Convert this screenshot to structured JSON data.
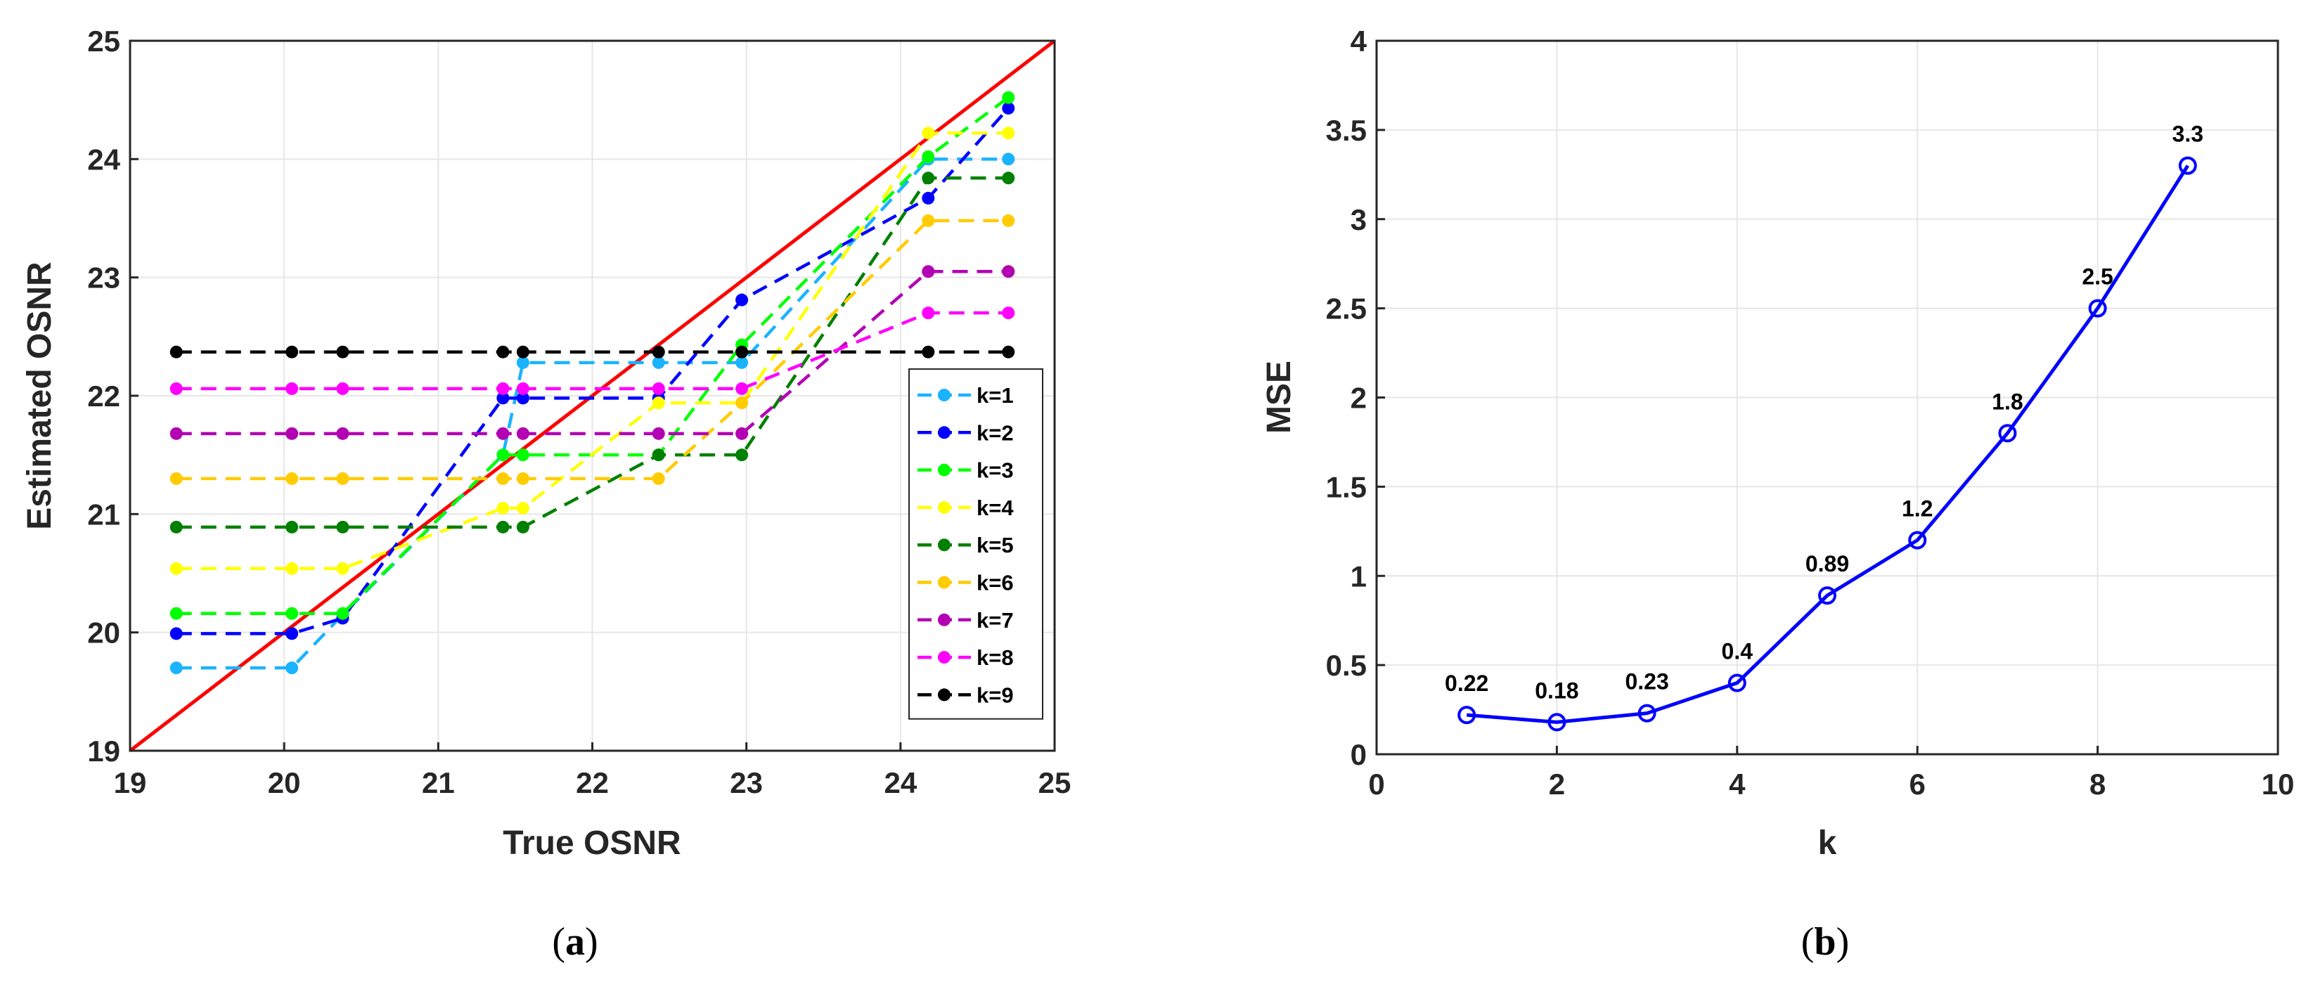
{
  "chart_data": [
    {
      "type": "line",
      "xlabel": "True OSNR",
      "ylabel": "Estimated OSNR",
      "xlim": [
        19,
        25
      ],
      "ylim": [
        19,
        25
      ],
      "xticks": [
        "19",
        "20",
        "21",
        "22",
        "23",
        "24",
        "25"
      ],
      "yticks": [
        "19",
        "20",
        "21",
        "22",
        "23",
        "24",
        "25"
      ],
      "grid": true,
      "legend_position": "right",
      "x": [
        19.3,
        20.05,
        20.38,
        21.42,
        21.55,
        22.43,
        22.97,
        24.18,
        24.7
      ],
      "reference_line": {
        "x": [
          19,
          25
        ],
        "y": [
          19,
          25
        ],
        "color": "#ff0000"
      },
      "series": [
        {
          "name": "k=1",
          "color": "#1ab3ff",
          "values": [
            19.7,
            19.7,
            20.15,
            21.5,
            22.28,
            22.28,
            22.28,
            24.0,
            24.0
          ]
        },
        {
          "name": "k=2",
          "color": "#0000ff",
          "values": [
            19.99,
            19.99,
            20.12,
            21.98,
            21.98,
            21.98,
            22.81,
            23.67,
            24.43
          ]
        },
        {
          "name": "k=3",
          "color": "#00ff00",
          "values": [
            20.16,
            20.16,
            20.16,
            21.5,
            21.5,
            21.5,
            22.43,
            24.02,
            24.52
          ]
        },
        {
          "name": "k=4",
          "color": "#ffff00",
          "values": [
            20.54,
            20.54,
            20.54,
            21.05,
            21.05,
            21.94,
            21.94,
            24.22,
            24.22
          ]
        },
        {
          "name": "k=5",
          "color": "#008000",
          "values": [
            20.89,
            20.89,
            20.89,
            20.89,
            20.89,
            21.5,
            21.5,
            23.84,
            23.84
          ]
        },
        {
          "name": "k=6",
          "color": "#ffcc00",
          "values": [
            21.3,
            21.3,
            21.3,
            21.3,
            21.3,
            21.3,
            21.94,
            23.48,
            23.48
          ]
        },
        {
          "name": "k=7",
          "color": "#b300b3",
          "values": [
            21.68,
            21.68,
            21.68,
            21.68,
            21.68,
            21.68,
            21.68,
            23.05,
            23.05
          ]
        },
        {
          "name": "k=8",
          "color": "#ff00ff",
          "values": [
            22.06,
            22.06,
            22.06,
            22.06,
            22.06,
            22.06,
            22.06,
            22.7,
            22.7
          ]
        },
        {
          "name": "k=9",
          "color": "#000000",
          "values": [
            22.37,
            22.37,
            22.37,
            22.37,
            22.37,
            22.37,
            22.37,
            22.37,
            22.37
          ]
        }
      ]
    },
    {
      "type": "line",
      "xlabel": "k",
      "ylabel": "MSE",
      "xlim": [
        0,
        10
      ],
      "ylim": [
        0,
        4
      ],
      "xticks": [
        "0",
        "2",
        "4",
        "6",
        "8",
        "10"
      ],
      "yticks": [
        "0",
        "0.5",
        "1",
        "1.5",
        "2",
        "2.5",
        "3",
        "3.5",
        "4"
      ],
      "grid": true,
      "color": "#0000ff",
      "x": [
        1,
        2,
        3,
        4,
        5,
        6,
        7,
        8,
        9
      ],
      "values": [
        0.22,
        0.18,
        0.23,
        0.4,
        0.89,
        1.2,
        1.8,
        2.5,
        3.3
      ],
      "data_labels": [
        "0.22",
        "0.18",
        "0.23",
        "0.4",
        "0.89",
        "1.2",
        "1.8",
        "2.5",
        "3.3"
      ]
    }
  ],
  "captions": {
    "a": "a",
    "b": "b"
  }
}
